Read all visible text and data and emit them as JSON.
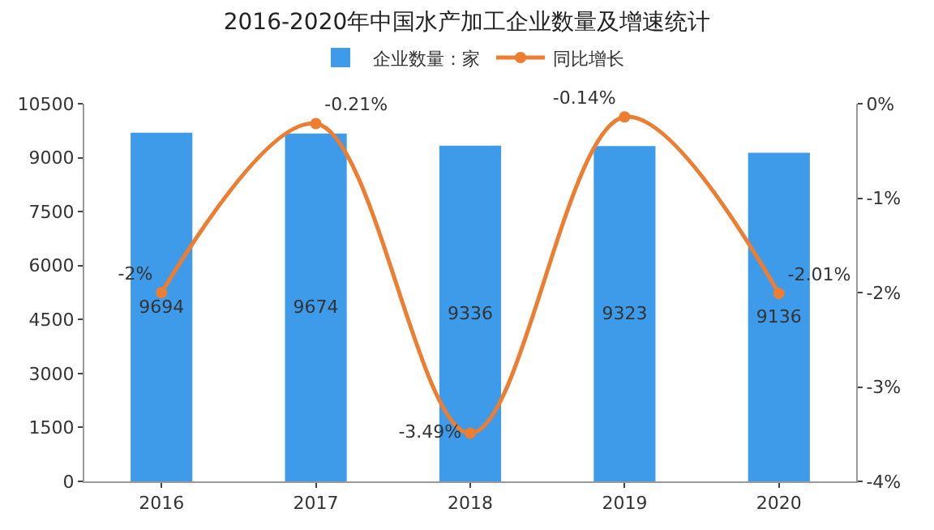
{
  "chart_data": {
    "type": "bar",
    "title": "2016-2020年中国水产加工企业数量及增速统计",
    "categories": [
      "2016",
      "2017",
      "2018",
      "2019",
      "2020"
    ],
    "series": [
      {
        "name": "企业数量：家",
        "type": "bar",
        "color": "#3d9be9",
        "values": [
          9694,
          9674,
          9336,
          9323,
          9136
        ]
      },
      {
        "name": "同比增长",
        "type": "line",
        "axis": "y2",
        "color": "#ed7d31",
        "values": [
          -2,
          -0.21,
          -3.49,
          -0.14,
          -2.01
        ],
        "value_labels": [
          "-2%",
          "-0.21%",
          "-3.49%",
          "-0.14%",
          "-2.01%"
        ]
      }
    ],
    "data_labels": true,
    "ylim": [
      0,
      10500
    ],
    "yticks": [
      0,
      1500,
      3000,
      4500,
      6000,
      7500,
      9000,
      10500
    ],
    "y2lim": [
      -4,
      0
    ],
    "y2ticks": [
      {
        "value": 0,
        "label": "0%"
      },
      {
        "value": -1,
        "label": "-1%"
      },
      {
        "value": -2,
        "label": "-2%"
      },
      {
        "value": -3,
        "label": "-3%"
      },
      {
        "value": -4,
        "label": "-4%"
      }
    ],
    "legend": "top",
    "marker": "circle",
    "line_style": "solid"
  }
}
